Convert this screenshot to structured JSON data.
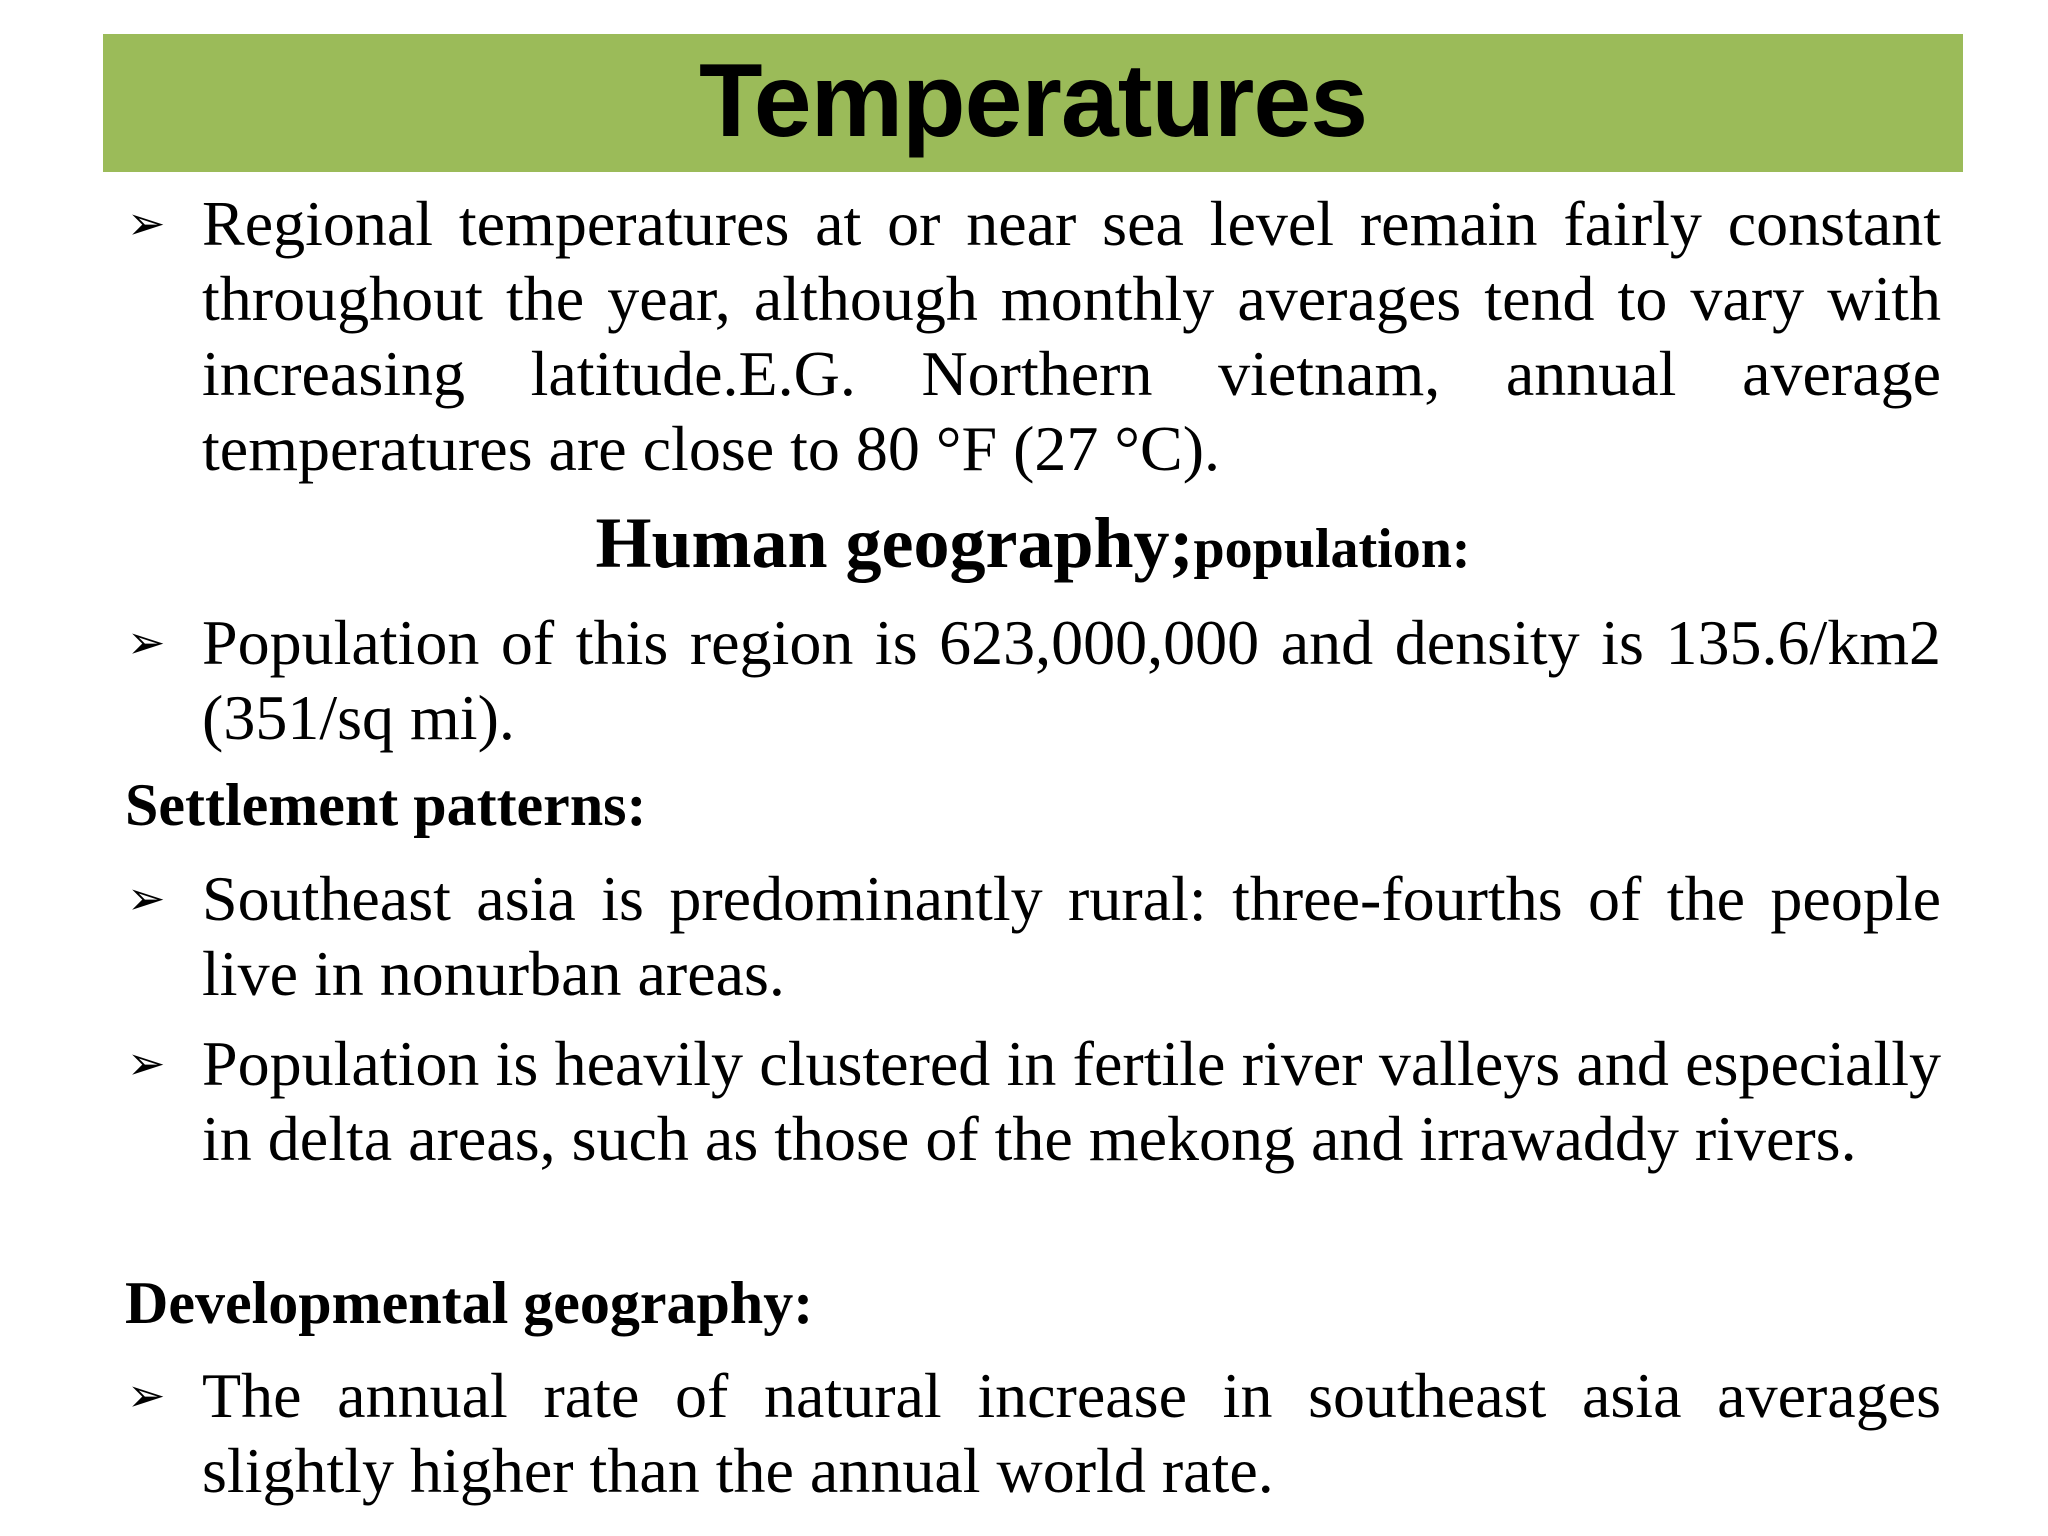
{
  "slide": {
    "title": "Temperatures",
    "colors": {
      "title_band": "#9bbb59",
      "text": "#000000"
    },
    "bullet_icon": "arrow-bullet-icon",
    "bullet_glyph": "➢",
    "bullets_temperatures": [
      "Regional temperatures at or near sea level remain fairly constant throughout the year, although monthly averages tend to vary with increasing latitude.E.G. Northern vietnam, annual average temperatures are close to 80 °F (27 °C)."
    ],
    "human_geography": {
      "heading_main": "Human geography;",
      "heading_sub": "population:",
      "bullets": [
        "Population of this region is 623,000,000 and density is 135.6/km2 (351/sq mi)."
      ]
    },
    "settlement": {
      "heading": "Settlement patterns:",
      "bullets": [
        "Southeast asia is predominantly rural: three-fourths of the people live in nonurban areas.",
        "Population is heavily clustered in fertile river valleys and especially in delta areas, such as those of the mekong and irrawaddy rivers."
      ]
    },
    "development": {
      "heading": "Developmental geography:",
      "bullets": [
        "The annual rate of natural increase in southeast asia averages slightly higher than the annual world rate."
      ]
    }
  }
}
